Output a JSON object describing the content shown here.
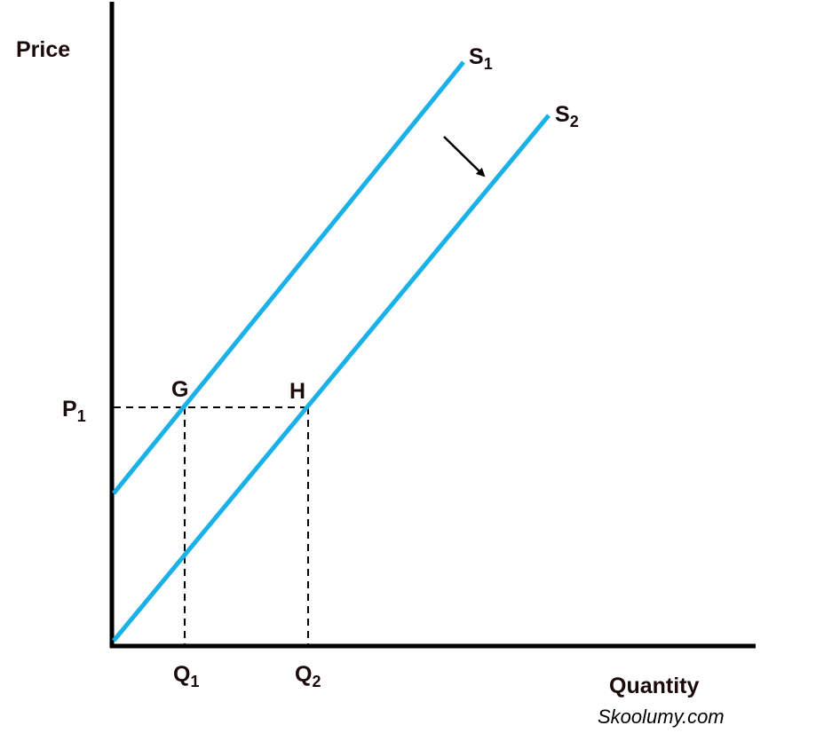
{
  "axes": {
    "y_label": "Price",
    "x_label": "Quantity"
  },
  "curves": [
    {
      "letter": "S",
      "subscript": "1"
    },
    {
      "letter": "S",
      "subscript": "2"
    }
  ],
  "points": [
    "G",
    "H"
  ],
  "price_labels": [
    {
      "letter": "P",
      "subscript": "1"
    }
  ],
  "quantity_labels": [
    {
      "letter": "Q",
      "subscript": "1"
    },
    {
      "letter": "Q",
      "subscript": "2"
    }
  ],
  "watermark": "Skoolumy.com"
}
